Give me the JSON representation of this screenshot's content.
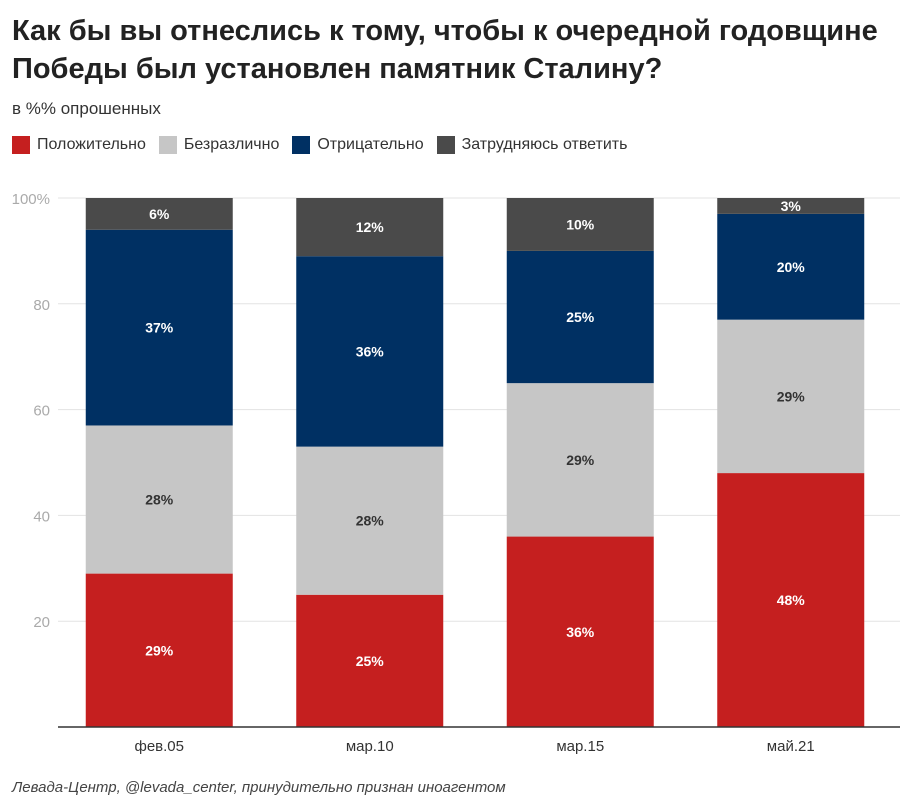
{
  "title": "Как бы вы отнеслись к тому, чтобы к очередной годовщине Победы был установлен памятник Сталину?",
  "subtitle": "в %% опрошенных",
  "footer": "Левада-Центр, @levada_center, принудительно признан иноагентом",
  "colors": {
    "positive": "#c51f1f",
    "indifferent": "#c6c6c6",
    "negative": "#003063",
    "undecided": "#4a4a4a"
  },
  "chart_data": {
    "type": "bar",
    "stacked": true,
    "categories": [
      "фев.05",
      "мар.10",
      "мар.15",
      "май.21"
    ],
    "series": [
      {
        "name": "Положительно",
        "color": "#c51f1f",
        "values": [
          29,
          25,
          36,
          48
        ],
        "labels": [
          "29%",
          "25%",
          "36%",
          "48%"
        ],
        "label_color": "#ffffff"
      },
      {
        "name": "Безразлично",
        "color": "#c6c6c6",
        "values": [
          28,
          28,
          29,
          29
        ],
        "labels": [
          "28%",
          "28%",
          "29%",
          "29%"
        ],
        "label_color": "#333333"
      },
      {
        "name": "Отрицательно",
        "color": "#003063",
        "values": [
          37,
          36,
          25,
          20
        ],
        "labels": [
          "37%",
          "36%",
          "25%",
          "20%"
        ],
        "label_color": "#ffffff"
      },
      {
        "name": "Затрудняюсь ответить",
        "color": "#4a4a4a",
        "values": [
          6,
          12,
          10,
          3
        ],
        "labels": [
          "6%",
          "12%",
          "10%",
          "3%"
        ],
        "label_color": "#ffffff"
      }
    ],
    "ylim": [
      0,
      100
    ],
    "yticks": [
      0,
      20,
      40,
      60,
      80,
      100
    ],
    "ytick_labels": [
      "",
      "20",
      "40",
      "60",
      "80",
      "100%"
    ],
    "xlabel": "",
    "ylabel": "",
    "grid": true,
    "legend_position": "top-left"
  }
}
